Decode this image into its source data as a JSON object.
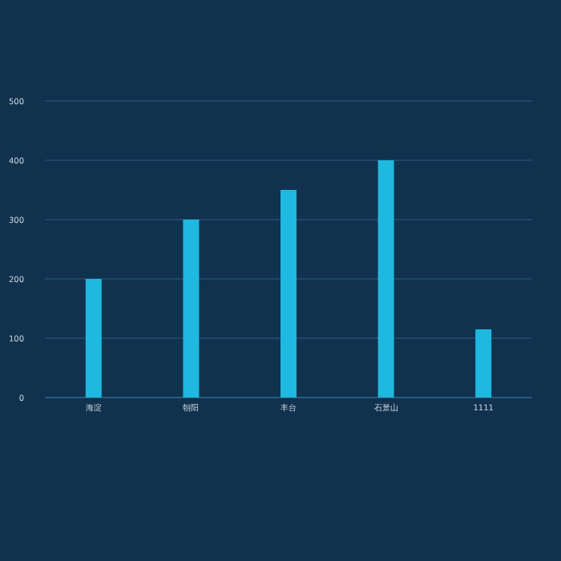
{
  "chart_data": {
    "type": "bar",
    "categories": [
      "海淀",
      "朝阳",
      "丰台",
      "石景山",
      "1111"
    ],
    "values": [
      200,
      300,
      350,
      400,
      115
    ],
    "color": "#1fb8de",
    "ylim": [
      0,
      500
    ],
    "yticks": [
      0,
      100,
      200,
      300,
      400,
      500
    ],
    "grid": "y"
  }
}
